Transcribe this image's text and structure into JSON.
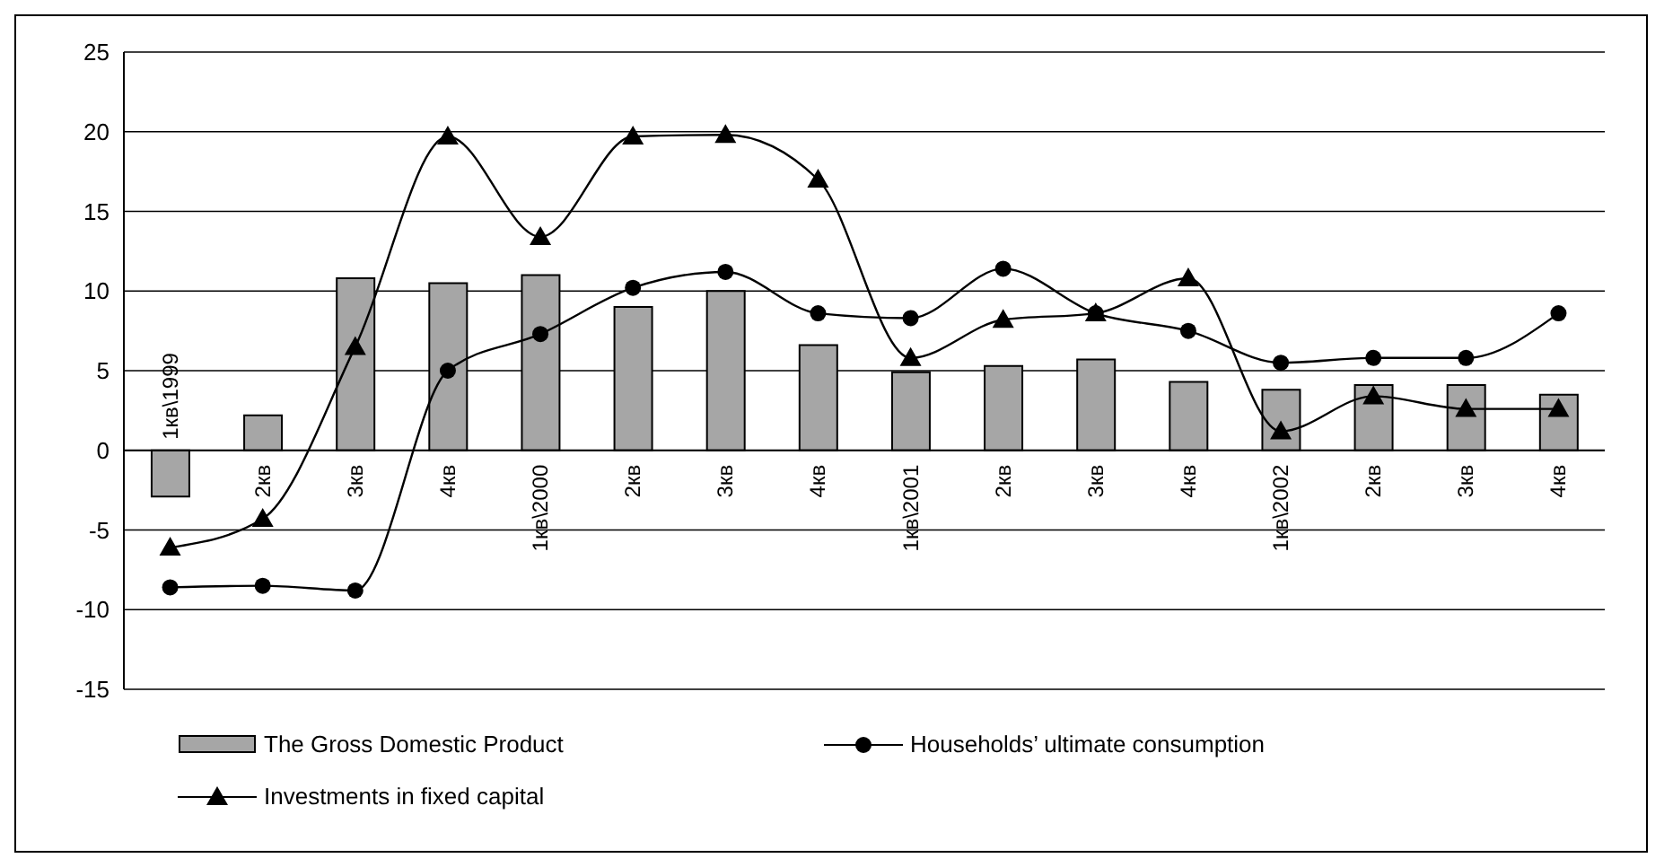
{
  "chart_data": {
    "type": "bar",
    "categories": [
      "1кв\\1999",
      "2кв",
      "3кв",
      "4кв",
      "1кв\\2000",
      "2кв",
      "3кв",
      "4кв",
      "1кв\\2001",
      "2кв",
      "3кв",
      "4кв",
      "1кв\\2002",
      "2кв",
      "3кв",
      "4кв"
    ],
    "series": [
      {
        "name": "The Gross Domestic Product",
        "color": "#a6a6a6",
        "values": [
          -2.9,
          2.2,
          10.8,
          10.5,
          11.0,
          9.0,
          10.0,
          6.6,
          4.9,
          5.3,
          5.7,
          4.3,
          3.8,
          4.1,
          4.1,
          3.5
        ]
      },
      {
        "name": "Households’ ultimate consumption",
        "type": "line",
        "color": "#000000",
        "marker": "circle",
        "values": [
          -8.6,
          -8.5,
          -8.8,
          5.0,
          7.3,
          10.2,
          11.2,
          8.6,
          8.3,
          11.4,
          8.6,
          7.5,
          5.5,
          5.8,
          5.8,
          8.6
        ]
      },
      {
        "name": "Investments in fixed capital",
        "type": "line",
        "color": "#000000",
        "marker": "triangle",
        "values": [
          -6.1,
          -4.3,
          6.5,
          19.7,
          13.4,
          19.7,
          19.8,
          17.0,
          5.8,
          8.2,
          8.6,
          10.8,
          1.2,
          3.4,
          2.6,
          2.6
        ]
      }
    ],
    "ylim": [
      -15,
      25
    ],
    "yticks": [
      -15,
      -10,
      -5,
      0,
      5,
      10,
      15,
      20,
      25
    ],
    "grid": "y",
    "legend": "bottom"
  }
}
